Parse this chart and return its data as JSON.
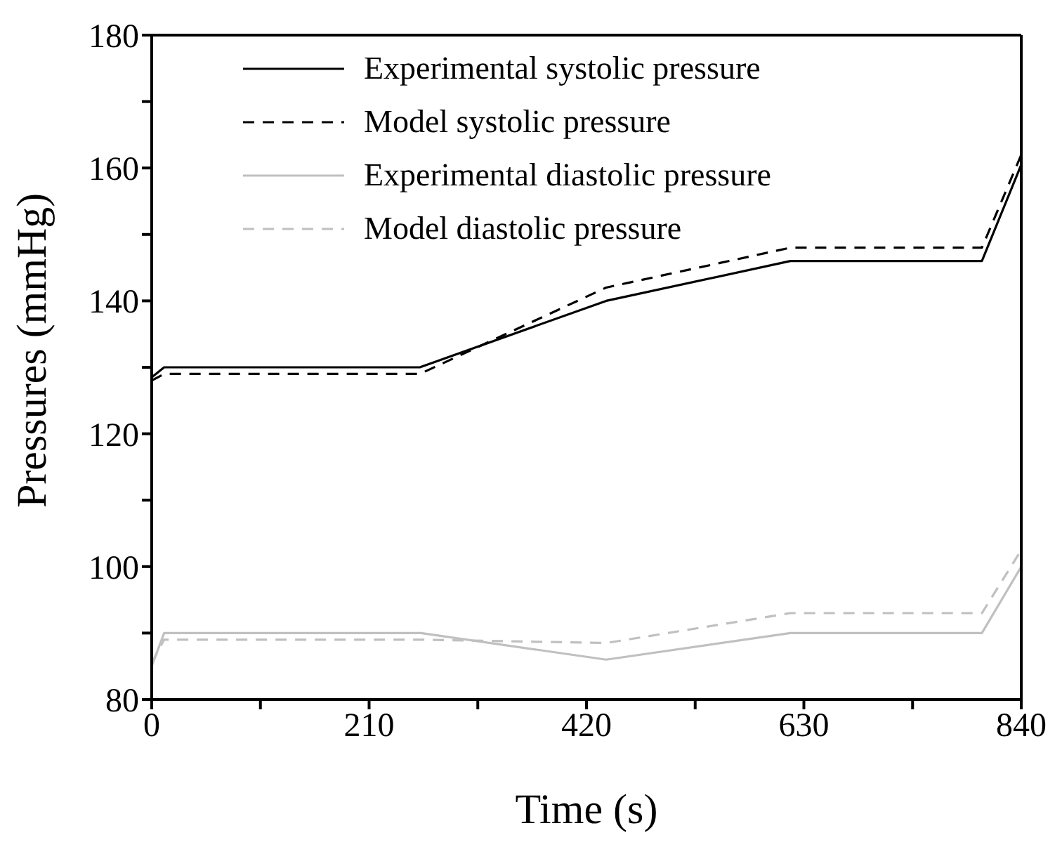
{
  "chart_data": {
    "type": "line",
    "xlabel": "Time (s)",
    "ylabel": "Pressures (mmHg)",
    "xlim": [
      0,
      840
    ],
    "ylim": [
      80,
      180
    ],
    "xticks": [
      0,
      {
        "value": 105,
        "label": null
      },
      210,
      {
        "value": 315,
        "label": null
      },
      420,
      {
        "value": 525,
        "label": null
      },
      630,
      {
        "value": 735,
        "label": null
      },
      840
    ],
    "yticks": [
      80,
      {
        "value": 90,
        "label": null
      },
      100,
      {
        "value": 110,
        "label": null
      },
      120,
      {
        "value": 130,
        "label": null
      },
      140,
      {
        "value": 150,
        "label": null
      },
      160,
      {
        "value": 170,
        "label": null
      },
      180
    ],
    "grid": false,
    "legend": "top left",
    "marker": "none",
    "series": [
      {
        "name": "Experimental systolic pressure",
        "color": "#000000",
        "line_style": "solid",
        "x": [
          0,
          12,
          259,
          439,
          617,
          802,
          840
        ],
        "values": [
          128.5,
          130,
          130,
          140,
          146,
          146,
          160.5
        ]
      },
      {
        "name": "Model systolic pressure",
        "color": "#000000",
        "line_style": "dashed",
        "x": [
          0,
          12,
          259,
          439,
          617,
          802,
          840
        ],
        "values": [
          128,
          129,
          129,
          142,
          148,
          148,
          162
        ]
      },
      {
        "name": "Experimental diastolic pressure",
        "color": "#c0c0c0",
        "line_style": "solid",
        "x": [
          0,
          12,
          260,
          439,
          617,
          802,
          840
        ],
        "values": [
          85,
          90,
          90,
          86,
          90,
          90,
          100
        ]
      },
      {
        "name": "Model diastolic pressure",
        "color": "#c0c0c0",
        "line_style": "dashed",
        "x": [
          0,
          12,
          260,
          439,
          617,
          802,
          840
        ],
        "values": [
          85.5,
          89,
          89,
          88.5,
          93,
          93,
          102.5
        ]
      }
    ]
  }
}
